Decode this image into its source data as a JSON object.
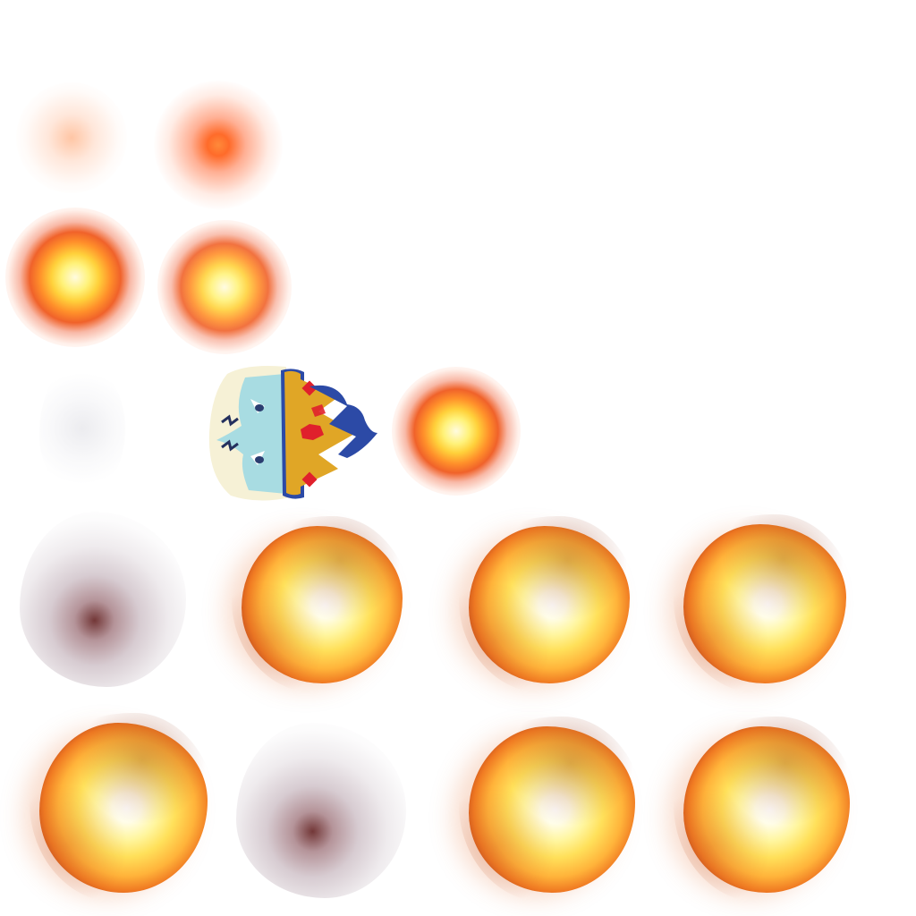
{
  "sheet": {
    "type": "sprite-sheet",
    "background": "#ffffff",
    "palette": {
      "fire_core": "#fffde8",
      "fire_mid": "#ffd13b",
      "fire_edge": "#f0622a",
      "smoke": "#5a1414",
      "crown_gold": "#e0a626",
      "crown_gem": "#e0202c",
      "plume_blue": "#2c4aa6",
      "face_ice": "#a8dce2",
      "cloth_cream": "#f6f1d6"
    },
    "sprites": [
      {
        "kind": "glow-faint",
        "icon": "spark-glow-icon"
      },
      {
        "kind": "glow-ember",
        "icon": "ember-glow-icon"
      },
      {
        "kind": "fireball-small",
        "icon": "fireball-icon"
      },
      {
        "kind": "fireball-small",
        "icon": "fireball-icon"
      },
      {
        "kind": "smoke-faint",
        "icon": "faint-smoke-icon"
      },
      {
        "kind": "king-head",
        "icon": "king-head-icon"
      },
      {
        "kind": "fireball-medium",
        "icon": "fireball-icon"
      },
      {
        "kind": "smoke-cloud",
        "icon": "smoke-cloud-icon"
      },
      {
        "kind": "explosion",
        "icon": "explosion-icon"
      },
      {
        "kind": "explosion",
        "icon": "explosion-icon"
      },
      {
        "kind": "explosion",
        "icon": "explosion-icon"
      },
      {
        "kind": "explosion",
        "icon": "explosion-icon"
      },
      {
        "kind": "smoke-cloud",
        "icon": "smoke-cloud-icon"
      },
      {
        "kind": "explosion",
        "icon": "explosion-icon"
      },
      {
        "kind": "explosion",
        "icon": "explosion-icon"
      }
    ]
  }
}
